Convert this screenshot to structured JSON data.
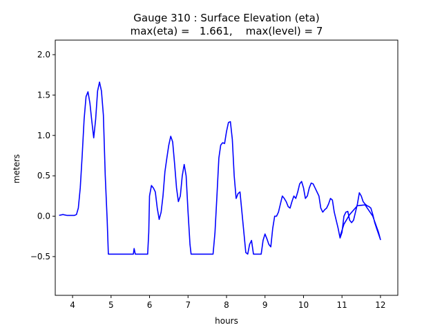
{
  "chart_data": {
    "type": "line",
    "title": "Gauge 310 : Surface Elevation (eta)",
    "subtitle": "max(eta) =   1.661,    max(level) = 7",
    "xlabel": "hours",
    "ylabel": "meters",
    "xlim": [
      3.55,
      12.45
    ],
    "ylim": [
      -0.98,
      2.18
    ],
    "xticks": [
      4,
      5,
      6,
      7,
      8,
      9,
      10,
      11,
      12
    ],
    "yticks": [
      -0.5,
      0.0,
      0.5,
      1.0,
      1.5,
      2.0
    ],
    "xtick_labels": [
      "4",
      "5",
      "6",
      "7",
      "8",
      "9",
      "10",
      "11",
      "12"
    ],
    "ytick_labels": [
      "−0.5",
      "0.0",
      "0.5",
      "1.0",
      "1.5",
      "2.0"
    ],
    "grid": false,
    "series": [
      {
        "color": "#0000ff",
        "points": [
          [
            3.65,
            0.01
          ],
          [
            3.75,
            0.02
          ],
          [
            3.85,
            0.01
          ],
          [
            3.95,
            0.01
          ],
          [
            4.05,
            0.01
          ],
          [
            4.1,
            0.02
          ],
          [
            4.15,
            0.1
          ],
          [
            4.2,
            0.35
          ],
          [
            4.25,
            0.75
          ],
          [
            4.3,
            1.2
          ],
          [
            4.35,
            1.48
          ],
          [
            4.4,
            1.54
          ],
          [
            4.45,
            1.4
          ],
          [
            4.5,
            1.18
          ],
          [
            4.55,
            0.97
          ],
          [
            4.6,
            1.2
          ],
          [
            4.65,
            1.55
          ],
          [
            4.7,
            1.66
          ],
          [
            4.75,
            1.55
          ],
          [
            4.8,
            1.25
          ],
          [
            4.85,
            0.5
          ],
          [
            4.9,
            -0.05
          ],
          [
            4.93,
            -0.47
          ],
          [
            5.0,
            -0.47
          ],
          [
            5.2,
            -0.47
          ],
          [
            5.4,
            -0.47
          ],
          [
            5.58,
            -0.47
          ],
          [
            5.6,
            -0.4
          ],
          [
            5.63,
            -0.47
          ],
          [
            5.8,
            -0.47
          ],
          [
            5.95,
            -0.47
          ],
          [
            5.98,
            -0.2
          ],
          [
            6.0,
            0.25
          ],
          [
            6.05,
            0.38
          ],
          [
            6.1,
            0.35
          ],
          [
            6.15,
            0.3
          ],
          [
            6.2,
            0.1
          ],
          [
            6.25,
            -0.04
          ],
          [
            6.3,
            0.05
          ],
          [
            6.35,
            0.25
          ],
          [
            6.4,
            0.55
          ],
          [
            6.45,
            0.72
          ],
          [
            6.5,
            0.88
          ],
          [
            6.55,
            0.99
          ],
          [
            6.6,
            0.92
          ],
          [
            6.65,
            0.65
          ],
          [
            6.7,
            0.35
          ],
          [
            6.75,
            0.18
          ],
          [
            6.8,
            0.25
          ],
          [
            6.85,
            0.5
          ],
          [
            6.9,
            0.64
          ],
          [
            6.95,
            0.5
          ],
          [
            7.0,
            0.05
          ],
          [
            7.05,
            -0.35
          ],
          [
            7.08,
            -0.47
          ],
          [
            7.2,
            -0.47
          ],
          [
            7.4,
            -0.47
          ],
          [
            7.6,
            -0.47
          ],
          [
            7.65,
            -0.47
          ],
          [
            7.7,
            -0.2
          ],
          [
            7.75,
            0.25
          ],
          [
            7.8,
            0.72
          ],
          [
            7.85,
            0.88
          ],
          [
            7.9,
            0.91
          ],
          [
            7.95,
            0.9
          ],
          [
            8.0,
            1.05
          ],
          [
            8.05,
            1.16
          ],
          [
            8.1,
            1.17
          ],
          [
            8.15,
            0.95
          ],
          [
            8.2,
            0.5
          ],
          [
            8.25,
            0.22
          ],
          [
            8.3,
            0.28
          ],
          [
            8.35,
            0.3
          ],
          [
            8.4,
            0.05
          ],
          [
            8.45,
            -0.2
          ],
          [
            8.5,
            -0.45
          ],
          [
            8.55,
            -0.47
          ],
          [
            8.6,
            -0.35
          ],
          [
            8.65,
            -0.3
          ],
          [
            8.7,
            -0.47
          ],
          [
            8.8,
            -0.47
          ],
          [
            8.9,
            -0.47
          ],
          [
            8.95,
            -0.3
          ],
          [
            9.0,
            -0.22
          ],
          [
            9.05,
            -0.28
          ],
          [
            9.1,
            -0.35
          ],
          [
            9.15,
            -0.38
          ],
          [
            9.2,
            -0.15
          ],
          [
            9.25,
            0.0
          ],
          [
            9.3,
            0.0
          ],
          [
            9.35,
            0.05
          ],
          [
            9.4,
            0.15
          ],
          [
            9.45,
            0.25
          ],
          [
            9.5,
            0.22
          ],
          [
            9.55,
            0.18
          ],
          [
            9.6,
            0.12
          ],
          [
            9.65,
            0.1
          ],
          [
            9.7,
            0.18
          ],
          [
            9.75,
            0.25
          ],
          [
            9.8,
            0.22
          ],
          [
            9.85,
            0.3
          ],
          [
            9.9,
            0.4
          ],
          [
            9.95,
            0.43
          ],
          [
            10.0,
            0.35
          ],
          [
            10.05,
            0.22
          ],
          [
            10.1,
            0.25
          ],
          [
            10.15,
            0.35
          ],
          [
            10.2,
            0.41
          ],
          [
            10.25,
            0.4
          ],
          [
            10.3,
            0.35
          ],
          [
            10.35,
            0.3
          ],
          [
            10.4,
            0.25
          ],
          [
            10.45,
            0.1
          ],
          [
            10.5,
            0.05
          ],
          [
            10.55,
            0.08
          ],
          [
            10.6,
            0.1
          ],
          [
            10.65,
            0.15
          ],
          [
            10.7,
            0.22
          ],
          [
            10.75,
            0.2
          ],
          [
            10.8,
            0.05
          ],
          [
            10.85,
            -0.05
          ],
          [
            10.9,
            -0.15
          ],
          [
            10.95,
            -0.27
          ],
          [
            11.0,
            -0.2
          ],
          [
            11.05,
            0.0
          ],
          [
            11.1,
            0.05
          ],
          [
            11.15,
            0.06
          ],
          [
            11.2,
            -0.05
          ],
          [
            11.25,
            -0.08
          ],
          [
            11.3,
            -0.05
          ],
          [
            11.35,
            0.05
          ],
          [
            11.4,
            0.15
          ],
          [
            11.45,
            0.29
          ],
          [
            11.5,
            0.25
          ],
          [
            11.55,
            0.18
          ],
          [
            11.6,
            0.15
          ],
          [
            11.65,
            0.13
          ],
          [
            11.7,
            0.12
          ],
          [
            11.75,
            0.1
          ],
          [
            11.8,
            0.02
          ],
          [
            11.85,
            -0.08
          ],
          [
            11.9,
            -0.15
          ],
          [
            11.95,
            -0.22
          ],
          [
            12.0,
            -0.29
          ],
          [
            11.95,
            -0.2
          ],
          [
            11.8,
            0.0
          ],
          [
            11.6,
            0.14
          ],
          [
            11.4,
            0.13
          ],
          [
            11.2,
            0.02
          ],
          [
            11.05,
            -0.1
          ],
          [
            10.95,
            -0.25
          ]
        ]
      }
    ]
  }
}
